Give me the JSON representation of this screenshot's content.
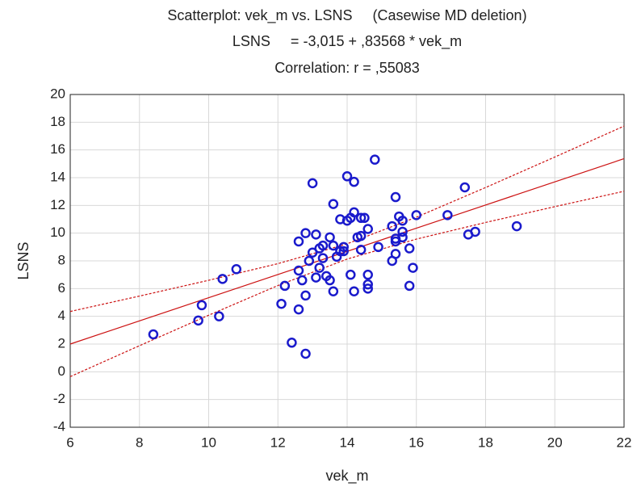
{
  "chart_data": {
    "type": "scatter",
    "title": "Scatterplot: vek_m vs. LSNS     (Casewise MD deletion)",
    "subtitle": "LSNS     = -3,015 + ,83568 * vek_m",
    "annotation": "Correlation: r = ,55083",
    "x_label": "vek_m",
    "y_label": "LSNS",
    "xlim": [
      6,
      22
    ],
    "ylim": [
      -4,
      20
    ],
    "xticks": [
      6,
      8,
      10,
      12,
      14,
      16,
      18,
      20,
      22
    ],
    "yticks": [
      -4,
      -2,
      0,
      2,
      4,
      6,
      8,
      10,
      12,
      14,
      16,
      18,
      20
    ],
    "grid": true,
    "color": "#1a1acc",
    "x": [
      8.4,
      9.7,
      9.8,
      10.3,
      10.4,
      10.8,
      12.1,
      12.2,
      12.4,
      12.6,
      12.6,
      12.6,
      12.7,
      12.8,
      12.8,
      12.8,
      12.9,
      13.0,
      13.0,
      13.1,
      13.1,
      13.2,
      13.2,
      13.3,
      13.3,
      13.4,
      13.5,
      13.5,
      13.6,
      13.6,
      13.6,
      13.7,
      13.8,
      13.8,
      13.9,
      13.9,
      14.0,
      14.0,
      14.1,
      14.1,
      14.2,
      14.2,
      14.2,
      14.3,
      14.4,
      14.4,
      14.4,
      14.5,
      14.6,
      14.6,
      14.6,
      14.6,
      14.8,
      14.9,
      15.3,
      15.3,
      15.4,
      15.4,
      15.4,
      15.4,
      15.5,
      15.6,
      15.6,
      15.6,
      15.8,
      15.8,
      15.9,
      16.0,
      16.9,
      17.4,
      17.5,
      17.7,
      18.9
    ],
    "values": [
      2.7,
      3.7,
      4.8,
      4.0,
      6.7,
      7.4,
      4.9,
      6.2,
      2.1,
      4.5,
      7.3,
      9.4,
      6.6,
      10.0,
      5.5,
      1.3,
      8.0,
      8.6,
      13.6,
      9.9,
      6.8,
      7.5,
      8.9,
      9.1,
      8.2,
      6.9,
      6.6,
      9.7,
      9.1,
      5.8,
      12.1,
      8.3,
      11.0,
      8.7,
      8.7,
      9.0,
      14.1,
      10.9,
      11.1,
      7.0,
      13.7,
      11.5,
      5.8,
      9.7,
      11.1,
      9.8,
      8.8,
      11.1,
      10.3,
      7.0,
      6.3,
      6.0,
      15.3,
      9.0,
      10.5,
      8.0,
      12.6,
      9.6,
      9.4,
      8.5,
      11.2,
      10.9,
      10.1,
      9.7,
      6.2,
      8.9,
      7.5,
      11.3,
      11.3,
      13.3,
      9.9,
      10.1,
      10.5
    ],
    "lines": [
      {
        "color": "#cc1111",
        "dashed": false,
        "x": [
          6,
          22
        ],
        "values": [
          2.0,
          15.37
        ]
      },
      {
        "color": "#cc1111",
        "dashed": true,
        "x": [
          6,
          8,
          10,
          12,
          14,
          16,
          18,
          20,
          22
        ],
        "values": [
          4.35,
          5.46,
          6.6,
          7.8,
          9.23,
          11.15,
          13.29,
          15.49,
          17.72
        ]
      },
      {
        "color": "#cc1111",
        "dashed": true,
        "x": [
          6,
          8,
          10,
          12,
          14,
          16,
          18,
          20,
          22
        ],
        "values": [
          -0.35,
          1.88,
          4.08,
          6.22,
          8.13,
          9.57,
          10.77,
          11.91,
          13.02
        ]
      }
    ]
  }
}
